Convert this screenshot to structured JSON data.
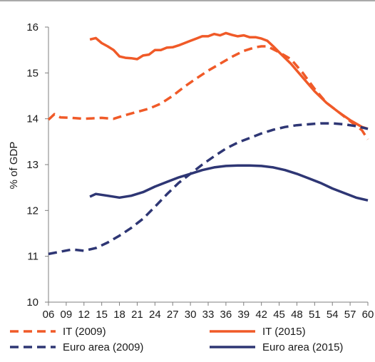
{
  "chart_data": {
    "type": "line",
    "title": "",
    "xlabel": "",
    "ylabel": "% of GDP",
    "x_ticks": [
      "06",
      "09",
      "12",
      "15",
      "18",
      "21",
      "24",
      "27",
      "30",
      "33",
      "36",
      "39",
      "42",
      "45",
      "48",
      "51",
      "54",
      "57",
      "60"
    ],
    "y_ticks": [
      "10",
      "11",
      "12",
      "13",
      "14",
      "15",
      "16"
    ],
    "xlim": [
      2006,
      2060
    ],
    "ylim": [
      10,
      16
    ],
    "grid": false,
    "legend_position": "bottom",
    "series": [
      {
        "name": "IT (2009)",
        "color": "#f05a28",
        "dash": "dashed",
        "points": [
          [
            2006,
            13.98
          ],
          [
            2007,
            14.1
          ],
          [
            2008,
            14.03
          ],
          [
            2010,
            14.02
          ],
          [
            2012,
            14.0
          ],
          [
            2015,
            14.02
          ],
          [
            2017,
            14.0
          ],
          [
            2019,
            14.08
          ],
          [
            2021,
            14.15
          ],
          [
            2023,
            14.22
          ],
          [
            2025,
            14.33
          ],
          [
            2027,
            14.5
          ],
          [
            2029,
            14.7
          ],
          [
            2031,
            14.88
          ],
          [
            2033,
            15.05
          ],
          [
            2035,
            15.2
          ],
          [
            2037,
            15.35
          ],
          [
            2039,
            15.48
          ],
          [
            2041,
            15.56
          ],
          [
            2042,
            15.58
          ],
          [
            2043,
            15.58
          ],
          [
            2045,
            15.45
          ],
          [
            2047,
            15.3
          ],
          [
            2049,
            15.0
          ],
          [
            2051,
            14.65
          ],
          [
            2053,
            14.35
          ],
          [
            2055,
            14.15
          ],
          [
            2057,
            13.95
          ],
          [
            2059,
            13.75
          ],
          [
            2060,
            13.55
          ]
        ]
      },
      {
        "name": "IT (2015)",
        "color": "#f05a28",
        "dash": "solid",
        "points": [
          [
            2013,
            15.73
          ],
          [
            2014,
            15.76
          ],
          [
            2015,
            15.65
          ],
          [
            2016,
            15.58
          ],
          [
            2017,
            15.5
          ],
          [
            2018,
            15.36
          ],
          [
            2019,
            15.33
          ],
          [
            2020,
            15.32
          ],
          [
            2021,
            15.3
          ],
          [
            2022,
            15.38
          ],
          [
            2023,
            15.4
          ],
          [
            2024,
            15.5
          ],
          [
            2025,
            15.5
          ],
          [
            2026,
            15.55
          ],
          [
            2027,
            15.56
          ],
          [
            2028,
            15.6
          ],
          [
            2029,
            15.65
          ],
          [
            2030,
            15.7
          ],
          [
            2031,
            15.75
          ],
          [
            2032,
            15.8
          ],
          [
            2033,
            15.8
          ],
          [
            2034,
            15.85
          ],
          [
            2035,
            15.82
          ],
          [
            2036,
            15.87
          ],
          [
            2037,
            15.83
          ],
          [
            2038,
            15.8
          ],
          [
            2039,
            15.82
          ],
          [
            2040,
            15.78
          ],
          [
            2041,
            15.78
          ],
          [
            2042,
            15.75
          ],
          [
            2043,
            15.7
          ],
          [
            2044,
            15.58
          ],
          [
            2045,
            15.45
          ],
          [
            2047,
            15.2
          ],
          [
            2049,
            14.9
          ],
          [
            2051,
            14.6
          ],
          [
            2053,
            14.35
          ],
          [
            2055,
            14.15
          ],
          [
            2057,
            13.97
          ],
          [
            2059,
            13.82
          ],
          [
            2060,
            13.78
          ]
        ]
      },
      {
        "name": "Euro area (2009)",
        "color": "#2e3674",
        "dash": "dashed",
        "points": [
          [
            2006,
            11.05
          ],
          [
            2008,
            11.1
          ],
          [
            2010,
            11.15
          ],
          [
            2012,
            11.12
          ],
          [
            2014,
            11.18
          ],
          [
            2016,
            11.3
          ],
          [
            2018,
            11.45
          ],
          [
            2020,
            11.62
          ],
          [
            2022,
            11.82
          ],
          [
            2024,
            12.08
          ],
          [
            2026,
            12.35
          ],
          [
            2028,
            12.6
          ],
          [
            2030,
            12.8
          ],
          [
            2032,
            13.0
          ],
          [
            2034,
            13.18
          ],
          [
            2036,
            13.35
          ],
          [
            2038,
            13.48
          ],
          [
            2040,
            13.58
          ],
          [
            2042,
            13.68
          ],
          [
            2044,
            13.76
          ],
          [
            2046,
            13.82
          ],
          [
            2048,
            13.86
          ],
          [
            2050,
            13.88
          ],
          [
            2052,
            13.9
          ],
          [
            2054,
            13.9
          ],
          [
            2056,
            13.88
          ],
          [
            2058,
            13.84
          ],
          [
            2060,
            13.78
          ]
        ]
      },
      {
        "name": "Euro area (2015)",
        "color": "#2e3674",
        "dash": "solid",
        "points": [
          [
            2013,
            12.3
          ],
          [
            2014,
            12.36
          ],
          [
            2016,
            12.32
          ],
          [
            2018,
            12.28
          ],
          [
            2020,
            12.32
          ],
          [
            2022,
            12.4
          ],
          [
            2024,
            12.52
          ],
          [
            2026,
            12.62
          ],
          [
            2028,
            12.72
          ],
          [
            2030,
            12.8
          ],
          [
            2032,
            12.88
          ],
          [
            2034,
            12.94
          ],
          [
            2036,
            12.97
          ],
          [
            2038,
            12.98
          ],
          [
            2040,
            12.98
          ],
          [
            2042,
            12.97
          ],
          [
            2044,
            12.94
          ],
          [
            2046,
            12.88
          ],
          [
            2048,
            12.8
          ],
          [
            2050,
            12.7
          ],
          [
            2052,
            12.6
          ],
          [
            2054,
            12.48
          ],
          [
            2056,
            12.38
          ],
          [
            2058,
            12.28
          ],
          [
            2060,
            12.22
          ]
        ]
      }
    ]
  }
}
